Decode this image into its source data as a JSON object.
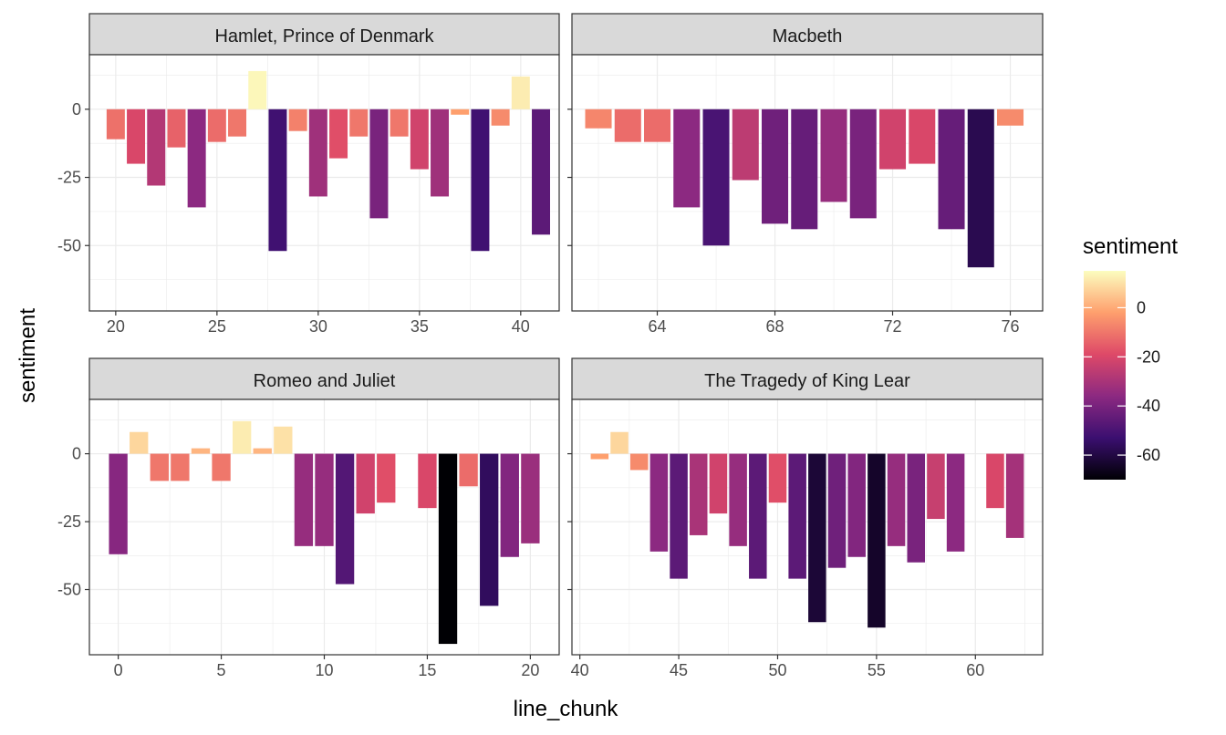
{
  "chart_data": {
    "type": "bar",
    "xlabel": "line_chunk",
    "ylabel": "sentiment",
    "grid": true,
    "legend": {
      "title": "sentiment",
      "placement": "right",
      "range": [
        -70,
        15
      ],
      "ticks": [
        0,
        -20,
        -40,
        -60
      ],
      "colors": [
        "#000004",
        "#3b0f70",
        "#8c2981",
        "#de4968",
        "#fe9f6d",
        "#fcfdbf"
      ]
    },
    "panels": [
      {
        "title": "Hamlet, Prince of Denmark",
        "xlim": [
          18.7,
          41.9
        ],
        "xticks": [
          20,
          25,
          30,
          35,
          40
        ],
        "ylim": [
          -74,
          20
        ],
        "yticks": [
          0,
          -25,
          -50
        ],
        "x": [
          20,
          21,
          22,
          23,
          24,
          25,
          26,
          27,
          28,
          29,
          30,
          31,
          32,
          33,
          34,
          35,
          36,
          37,
          38,
          39,
          40,
          41
        ],
        "values": [
          -11,
          -20,
          -28,
          -14,
          -36,
          -12,
          -10,
          14,
          -52,
          -8,
          -32,
          -18,
          -10,
          -40,
          -10,
          -22,
          -32,
          -2,
          -52,
          -6,
          12,
          -46
        ]
      },
      {
        "title": "Macbeth",
        "xlim": [
          61.1,
          77.1
        ],
        "xticks": [
          64,
          68,
          72,
          76
        ],
        "ylim": [
          -74,
          20
        ],
        "yticks": [
          0,
          -25,
          -50
        ],
        "x": [
          62,
          63,
          64,
          65,
          66,
          67,
          68,
          69,
          70,
          71,
          72,
          73,
          74,
          75,
          76
        ],
        "values": [
          -7,
          -12,
          -12,
          -36,
          -50,
          -26,
          -42,
          -44,
          -34,
          -40,
          -22,
          -20,
          -44,
          -58,
          -6
        ]
      },
      {
        "title": "Romeo and Juliet",
        "xlim": [
          -1.4,
          21.4
        ],
        "xticks": [
          0,
          5,
          10,
          15,
          20
        ],
        "ylim": [
          -74,
          20
        ],
        "yticks": [
          0,
          -25,
          -50
        ],
        "x": [
          0,
          1,
          2,
          3,
          4,
          5,
          6,
          7,
          8,
          9,
          10,
          11,
          12,
          13,
          15,
          16,
          17,
          18,
          19,
          20
        ],
        "values": [
          -37,
          8,
          -10,
          -10,
          2,
          -10,
          12,
          2,
          10,
          -34,
          -34,
          -48,
          -22,
          -18,
          -20,
          -70,
          -12,
          -56,
          -38,
          -33
        ]
      },
      {
        "title": "The Tragedy of King Lear",
        "xlim": [
          39.6,
          63.4
        ],
        "xticks": [
          40,
          45,
          50,
          55,
          60
        ],
        "ylim": [
          -74,
          20
        ],
        "yticks": [
          0,
          -25,
          -50
        ],
        "x": [
          41,
          42,
          43,
          44,
          45,
          46,
          47,
          48,
          49,
          50,
          51,
          52,
          53,
          54,
          55,
          56,
          57,
          58,
          59,
          61,
          62
        ],
        "values": [
          -2,
          8,
          -6,
          -36,
          -46,
          -30,
          -22,
          -34,
          -46,
          -18,
          -46,
          -62,
          -42,
          -38,
          -64,
          -34,
          -40,
          -24,
          -36,
          -20,
          -31
        ]
      }
    ]
  }
}
